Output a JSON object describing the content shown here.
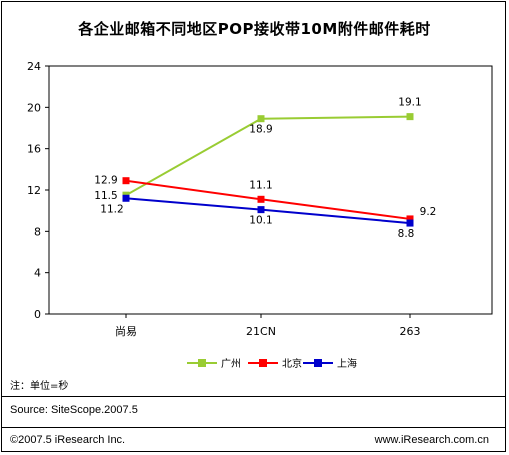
{
  "title": "各企业邮箱不同地区POP接收带10M附件邮件耗时",
  "note": "注：单位=秒",
  "source": "Source:  SiteScope.2007.5",
  "footer_left": "©2007.5 iResearch Inc.",
  "footer_right": "www.iResearch.com.cn",
  "legend": [
    {
      "name": "广州",
      "color": "#99cc33"
    },
    {
      "name": "北京",
      "color": "#ff0000"
    },
    {
      "name": "上海",
      "color": "#0000cc"
    }
  ],
  "chart_data": {
    "type": "line",
    "title": "各企业邮箱不同地区POP接收带10M附件邮件耗时",
    "categories": [
      "尚易",
      "21CN",
      "263"
    ],
    "ylim": [
      0,
      24
    ],
    "yticks": [
      0,
      4,
      8,
      12,
      16,
      20,
      24
    ],
    "grid": false,
    "legend_position": "bottom",
    "series": [
      {
        "name": "广州",
        "values": [
          11.5,
          18.9,
          19.1
        ],
        "color": "#99cc33",
        "labels": [
          "11.5",
          "18.9",
          "19.1"
        ]
      },
      {
        "name": "北京",
        "values": [
          12.9,
          11.1,
          9.2
        ],
        "color": "#ff0000",
        "labels": [
          "12.9",
          "11.1",
          "9.2"
        ]
      },
      {
        "name": "上海",
        "values": [
          11.2,
          10.1,
          8.8
        ],
        "color": "#0000cc",
        "labels": [
          "11.2",
          "10.1",
          "8.8"
        ]
      }
    ]
  }
}
